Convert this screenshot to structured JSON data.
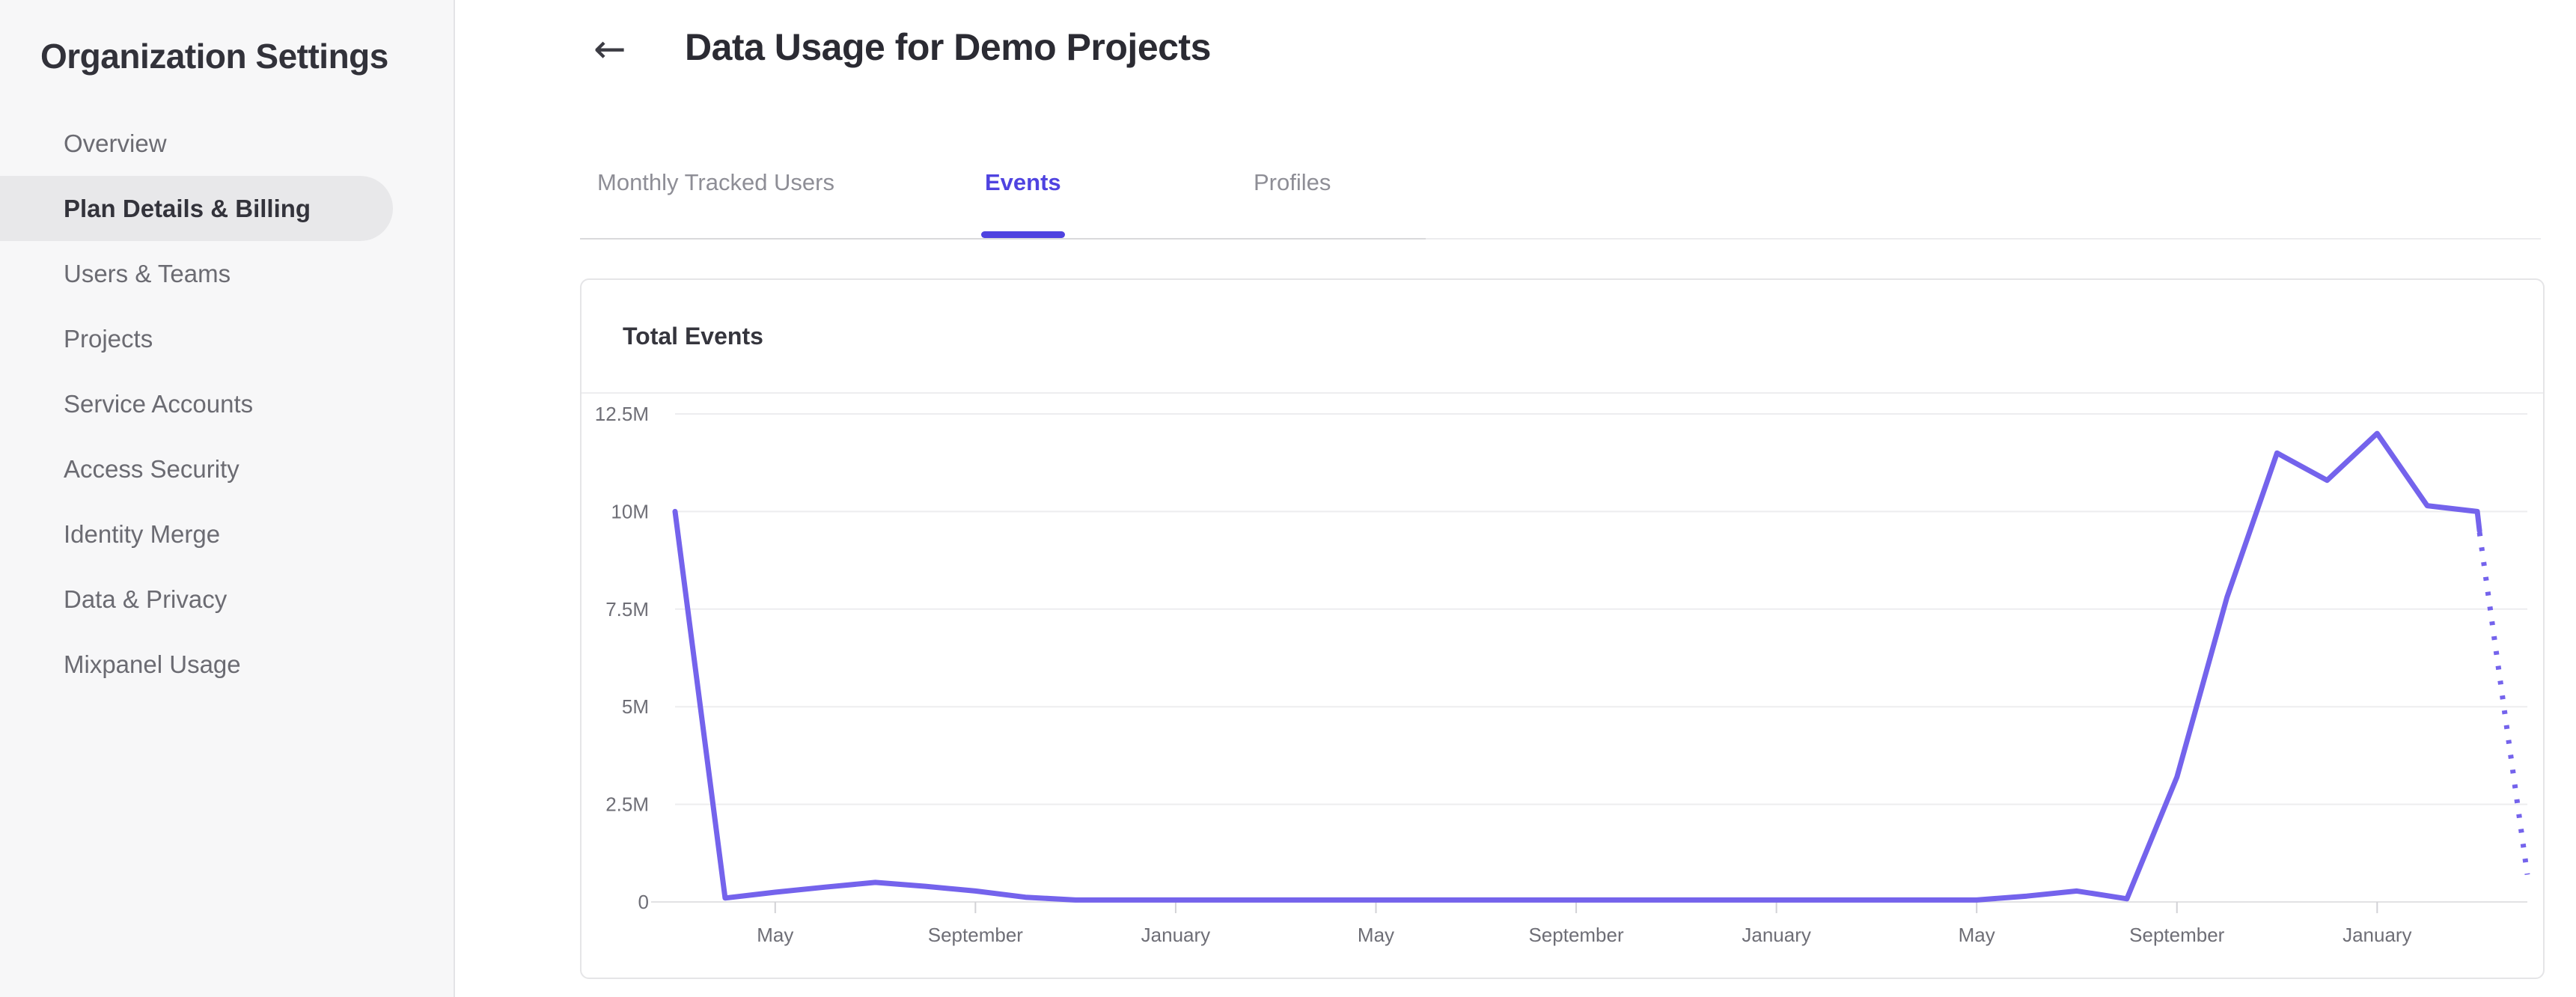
{
  "sidebar": {
    "title": "Organization Settings",
    "items": [
      {
        "label": "Overview",
        "selected": false
      },
      {
        "label": "Plan Details & Billing",
        "selected": true
      },
      {
        "label": "Users & Teams",
        "selected": false
      },
      {
        "label": "Projects",
        "selected": false
      },
      {
        "label": "Service Accounts",
        "selected": false
      },
      {
        "label": "Access Security",
        "selected": false
      },
      {
        "label": "Identity Merge",
        "selected": false
      },
      {
        "label": "Data & Privacy",
        "selected": false
      },
      {
        "label": "Mixpanel Usage",
        "selected": false
      }
    ]
  },
  "header": {
    "back_icon": "←",
    "title": "Data Usage for Demo Projects"
  },
  "tabs": [
    {
      "label": "Monthly Tracked Users",
      "active": false
    },
    {
      "label": "Events",
      "active": true
    },
    {
      "label": "Profiles",
      "active": false
    }
  ],
  "card": {
    "title": "Total Events"
  },
  "colors": {
    "accent": "#4f43e0",
    "line": "#7463ec",
    "sidebar_selected_bg": "#e8e8ea"
  },
  "chart_data": {
    "type": "line",
    "title": "Total Events",
    "grid": "horizontal",
    "ylim_millions": [
      0,
      12.5
    ],
    "y_tick_labels": [
      "12.5M",
      "10M",
      "7.5M",
      "5M",
      "2.5M",
      "0"
    ],
    "x_tick_labels": [
      "May",
      "September",
      "January",
      "May",
      "September",
      "January",
      "May",
      "September",
      "January"
    ],
    "x_tick_start_index": 2,
    "x_tick_every": 4,
    "series": [
      {
        "name": "Total Events",
        "color": "#7463ec",
        "values_millions": [
          10,
          0.1,
          0.25,
          0.38,
          0.5,
          0.4,
          0.28,
          0.12,
          0.05,
          0.05,
          0.05,
          0.05,
          0.05,
          0.05,
          0.05,
          0.05,
          0.05,
          0.05,
          0.05,
          0.05,
          0.05,
          0.05,
          0.05,
          0.05,
          0.05,
          0.05,
          0.05,
          0.15,
          0.28,
          0.08,
          3.2,
          7.8,
          11.5,
          10.8,
          12.0,
          10.15,
          10.0,
          0.7
        ],
        "last_segment_style": "dotted"
      }
    ]
  }
}
